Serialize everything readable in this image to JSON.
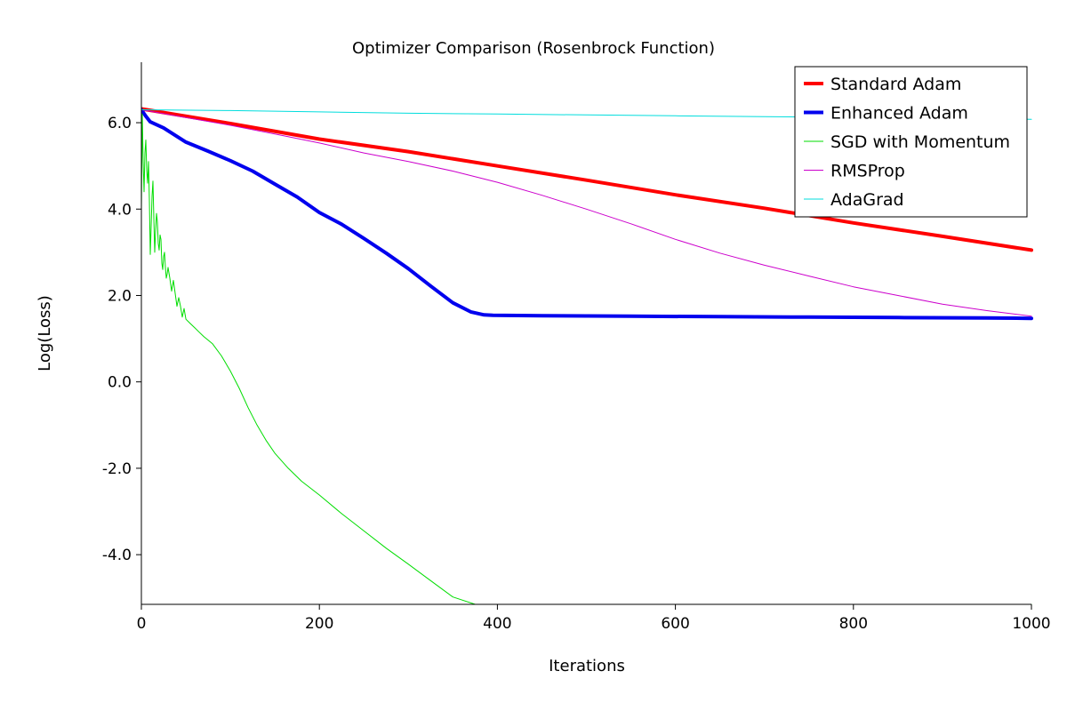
{
  "chart_data": {
    "type": "line",
    "title": "Optimizer Comparison (Rosenbrock Function)",
    "xlabel": "Iterations",
    "ylabel": "Log(Loss)",
    "xlim": [
      0,
      1000
    ],
    "ylim": [
      -5.15,
      7.4
    ],
    "xticks": [
      0,
      200,
      400,
      600,
      800,
      1000
    ],
    "yticks": [
      -4.0,
      -2.0,
      0.0,
      2.0,
      4.0,
      6.0
    ],
    "xtick_labels": [
      "0",
      "200",
      "400",
      "600",
      "800",
      "1000"
    ],
    "ytick_labels": [
      "-4.0",
      "-2.0",
      "0.0",
      "2.0",
      "4.0",
      "6.0"
    ],
    "grid": false,
    "legend_position": "top-right",
    "series": [
      {
        "name": "Standard Adam",
        "color": "#ff0000",
        "width": 4,
        "x": [
          0,
          100,
          200,
          300,
          400,
          500,
          600,
          700,
          800,
          900,
          1000
        ],
        "y": [
          6.32,
          5.98,
          5.62,
          5.33,
          5.0,
          4.67,
          4.33,
          4.02,
          3.68,
          3.37,
          3.05
        ]
      },
      {
        "name": "Enhanced Adam",
        "color": "#0000ee",
        "width": 4,
        "x": [
          0,
          5,
          10,
          25,
          50,
          75,
          100,
          125,
          150,
          175,
          200,
          225,
          250,
          275,
          300,
          325,
          350,
          370,
          385,
          395,
          450,
          550,
          650,
          750,
          850,
          950,
          1000
        ],
        "y": [
          6.3,
          6.15,
          6.02,
          5.88,
          5.55,
          5.34,
          5.12,
          4.88,
          4.58,
          4.28,
          3.92,
          3.65,
          3.32,
          2.98,
          2.62,
          2.22,
          1.83,
          1.62,
          1.55,
          1.54,
          1.53,
          1.52,
          1.51,
          1.5,
          1.49,
          1.48,
          1.47
        ]
      },
      {
        "name": "SGD with Momentum",
        "color": "#00dd00",
        "width": 1,
        "x": [
          0,
          1,
          2,
          3,
          4,
          5,
          6,
          7,
          8,
          9,
          10,
          11,
          12,
          13,
          14,
          15,
          16,
          17,
          18,
          19,
          20,
          21,
          22,
          23,
          24,
          25,
          26,
          27,
          28,
          29,
          30,
          32,
          34,
          36,
          38,
          40,
          42,
          44,
          46,
          48,
          50,
          55,
          60,
          65,
          70,
          80,
          90,
          100,
          110,
          120,
          130,
          140,
          150,
          165,
          180,
          200,
          225,
          250,
          275,
          300,
          325,
          350,
          375,
          395,
          400,
          500,
          600,
          700,
          800,
          900,
          1000
        ],
        "y": [
          4.0,
          6.2,
          5.1,
          4.4,
          5.3,
          5.6,
          4.9,
          4.6,
          5.1,
          4.2,
          2.95,
          3.6,
          4.3,
          4.65,
          3.8,
          3.0,
          3.5,
          3.9,
          3.7,
          3.2,
          3.05,
          3.4,
          3.3,
          2.75,
          2.6,
          2.9,
          3.0,
          2.65,
          2.4,
          2.5,
          2.65,
          2.4,
          2.1,
          2.35,
          2.05,
          1.75,
          1.95,
          1.75,
          1.5,
          1.7,
          1.45,
          1.35,
          1.25,
          1.15,
          1.05,
          0.88,
          0.6,
          0.25,
          -0.15,
          -0.6,
          -1.0,
          -1.35,
          -1.65,
          -2.0,
          -2.3,
          -2.62,
          -3.05,
          -3.45,
          -3.85,
          -4.22,
          -4.6,
          -4.98,
          -5.15,
          -5.15,
          -5.15,
          -5.15,
          -5.15,
          -5.15,
          -5.15,
          -5.15,
          -5.15
        ]
      },
      {
        "name": "RMSProp",
        "color": "#cc00cc",
        "width": 1,
        "x": [
          0,
          50,
          100,
          150,
          200,
          250,
          300,
          350,
          400,
          450,
          500,
          550,
          600,
          650,
          700,
          750,
          800,
          850,
          900,
          950,
          1000
        ],
        "y": [
          6.3,
          6.12,
          5.94,
          5.74,
          5.53,
          5.3,
          5.1,
          4.88,
          4.62,
          4.32,
          4.0,
          3.66,
          3.3,
          2.98,
          2.7,
          2.45,
          2.2,
          2.0,
          1.8,
          1.65,
          1.52
        ]
      },
      {
        "name": "AdaGrad",
        "color": "#00dddd",
        "width": 1,
        "x": [
          0,
          100,
          200,
          300,
          400,
          500,
          600,
          700,
          800,
          900,
          1000
        ],
        "y": [
          6.3,
          6.28,
          6.25,
          6.22,
          6.2,
          6.18,
          6.16,
          6.14,
          6.12,
          6.1,
          6.08
        ]
      }
    ]
  }
}
